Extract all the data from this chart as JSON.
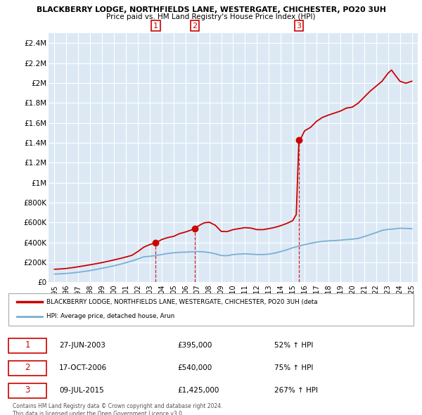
{
  "title_line1": "BLACKBERRY LODGE, NORTHFIELDS LANE, WESTERGATE, CHICHESTER, PO20 3UH",
  "title_line2": "Price paid vs. HM Land Registry's House Price Index (HPI)",
  "plot_bg_color": "#dce9f5",
  "grid_color": "#ffffff",
  "property_color": "#cc0000",
  "hpi_color": "#7aafd4",
  "sales": [
    {
      "num": 1,
      "date_num": 2003.49,
      "price": 395000
    },
    {
      "num": 2,
      "date_num": 2006.79,
      "price": 540000
    },
    {
      "num": 3,
      "date_num": 2015.52,
      "price": 1425000
    }
  ],
  "sale_dates": [
    "27-JUN-2003",
    "17-OCT-2006",
    "09-JUL-2015"
  ],
  "sale_prices_str": [
    "£395,000",
    "£540,000",
    "£1,425,000"
  ],
  "sale_pcts": [
    "52% ↑ HPI",
    "75% ↑ HPI",
    "267% ↑ HPI"
  ],
  "xlim": [
    1994.5,
    2025.5
  ],
  "ylim": [
    0,
    2500000
  ],
  "yticks": [
    0,
    200000,
    400000,
    600000,
    800000,
    1000000,
    1200000,
    1400000,
    1600000,
    1800000,
    2000000,
    2200000,
    2400000
  ],
  "ytick_labels": [
    "£0",
    "£200K",
    "£400K",
    "£600K",
    "£800K",
    "£1M",
    "£1.2M",
    "£1.4M",
    "£1.6M",
    "£1.8M",
    "£2M",
    "£2.2M",
    "£2.4M"
  ],
  "xticks": [
    1995,
    1996,
    1997,
    1998,
    1999,
    2000,
    2001,
    2002,
    2003,
    2004,
    2005,
    2006,
    2007,
    2008,
    2009,
    2010,
    2011,
    2012,
    2013,
    2014,
    2015,
    2016,
    2017,
    2018,
    2019,
    2020,
    2021,
    2022,
    2023,
    2024,
    2025
  ],
  "legend_property_label": "BLACKBERRY LODGE, NORTHFIELDS LANE, WESTERGATE, CHICHESTER, PO20 3UH (deta",
  "legend_hpi_label": "HPI: Average price, detached house, Arun",
  "footnote1": "Contains HM Land Registry data © Crown copyright and database right 2024.",
  "footnote2": "This data is licensed under the Open Government Licence v3.0."
}
